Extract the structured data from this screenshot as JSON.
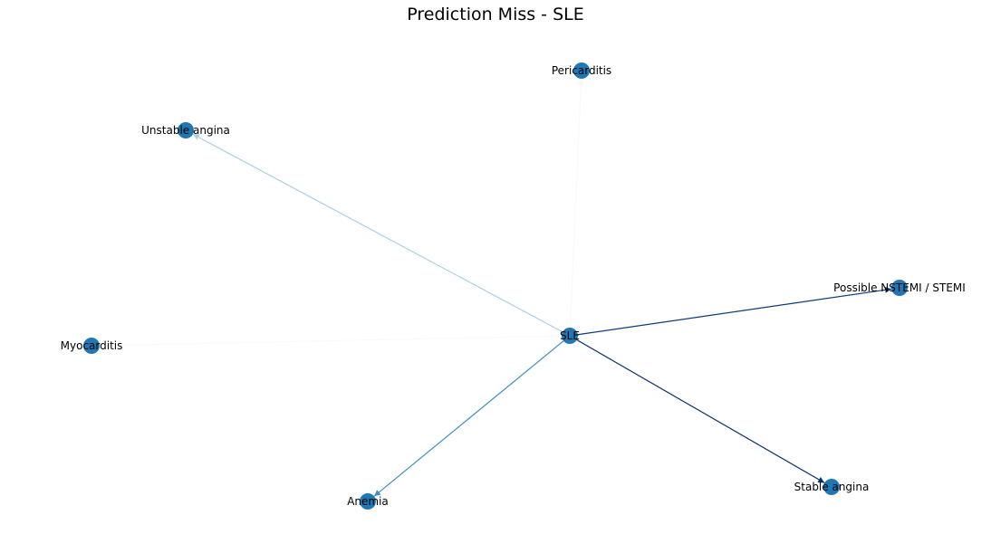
{
  "title": "Prediction Miss - SLE",
  "node_color": "#1f77b4",
  "nodes": [
    {
      "id": "sle",
      "label": "SLE"
    },
    {
      "id": "pericarditis",
      "label": "Pericarditis"
    },
    {
      "id": "unstable-angina",
      "label": "Unstable angina"
    },
    {
      "id": "possible-nstemi-stemi",
      "label": "Possible NSTEMI / STEMI"
    },
    {
      "id": "myocarditis",
      "label": "Myocarditis"
    },
    {
      "id": "anemia",
      "label": "Anemia"
    },
    {
      "id": "stable-angina",
      "label": "Stable angina"
    }
  ],
  "edges": [
    {
      "source": "sle",
      "target": "pericarditis",
      "color": "#f5f9fe"
    },
    {
      "source": "sle",
      "target": "myocarditis",
      "color": "#f7fbff"
    },
    {
      "source": "sle",
      "target": "unstable-angina",
      "color": "#a9cfe5"
    },
    {
      "source": "sle",
      "target": "anemia",
      "color": "#3f8fc5"
    },
    {
      "source": "sle",
      "target": "possible-nstemi-stemi",
      "color": "#0b3b7a"
    },
    {
      "source": "sle",
      "target": "stable-angina",
      "color": "#08306b"
    }
  ]
}
